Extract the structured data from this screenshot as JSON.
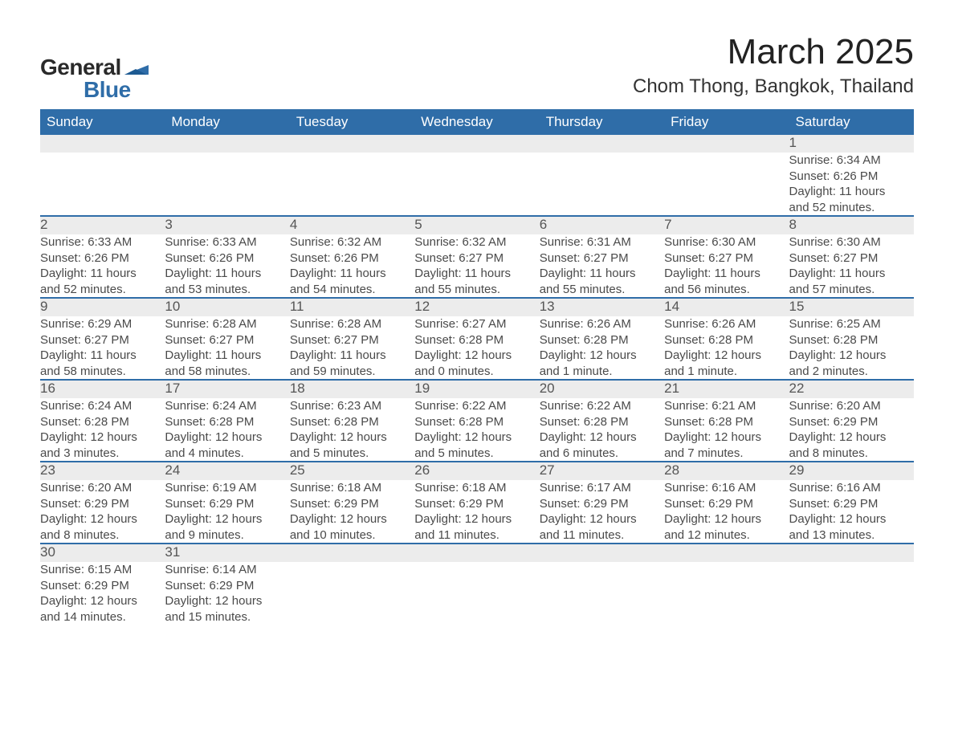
{
  "logo": {
    "text1": "General",
    "text2": "Blue",
    "color_dark": "#2a2a2a",
    "color_blue": "#2f6da8"
  },
  "title": "March 2025",
  "location": "Chom Thong, Bangkok, Thailand",
  "header_bg": "#2f6da8",
  "header_fg": "#ffffff",
  "daynum_bg": "#ececec",
  "border_color": "#2f6da8",
  "text_color": "#4a4a4a",
  "weekdays": [
    "Sunday",
    "Monday",
    "Tuesday",
    "Wednesday",
    "Thursday",
    "Friday",
    "Saturday"
  ],
  "weeks": [
    [
      {
        "num": "",
        "lines": [
          "",
          "",
          "",
          ""
        ]
      },
      {
        "num": "",
        "lines": [
          "",
          "",
          "",
          ""
        ]
      },
      {
        "num": "",
        "lines": [
          "",
          "",
          "",
          ""
        ]
      },
      {
        "num": "",
        "lines": [
          "",
          "",
          "",
          ""
        ]
      },
      {
        "num": "",
        "lines": [
          "",
          "",
          "",
          ""
        ]
      },
      {
        "num": "",
        "lines": [
          "",
          "",
          "",
          ""
        ]
      },
      {
        "num": "1",
        "lines": [
          "Sunrise: 6:34 AM",
          "Sunset: 6:26 PM",
          "Daylight: 11 hours",
          "and 52 minutes."
        ]
      }
    ],
    [
      {
        "num": "2",
        "lines": [
          "Sunrise: 6:33 AM",
          "Sunset: 6:26 PM",
          "Daylight: 11 hours",
          "and 52 minutes."
        ]
      },
      {
        "num": "3",
        "lines": [
          "Sunrise: 6:33 AM",
          "Sunset: 6:26 PM",
          "Daylight: 11 hours",
          "and 53 minutes."
        ]
      },
      {
        "num": "4",
        "lines": [
          "Sunrise: 6:32 AM",
          "Sunset: 6:26 PM",
          "Daylight: 11 hours",
          "and 54 minutes."
        ]
      },
      {
        "num": "5",
        "lines": [
          "Sunrise: 6:32 AM",
          "Sunset: 6:27 PM",
          "Daylight: 11 hours",
          "and 55 minutes."
        ]
      },
      {
        "num": "6",
        "lines": [
          "Sunrise: 6:31 AM",
          "Sunset: 6:27 PM",
          "Daylight: 11 hours",
          "and 55 minutes."
        ]
      },
      {
        "num": "7",
        "lines": [
          "Sunrise: 6:30 AM",
          "Sunset: 6:27 PM",
          "Daylight: 11 hours",
          "and 56 minutes."
        ]
      },
      {
        "num": "8",
        "lines": [
          "Sunrise: 6:30 AM",
          "Sunset: 6:27 PM",
          "Daylight: 11 hours",
          "and 57 minutes."
        ]
      }
    ],
    [
      {
        "num": "9",
        "lines": [
          "Sunrise: 6:29 AM",
          "Sunset: 6:27 PM",
          "Daylight: 11 hours",
          "and 58 minutes."
        ]
      },
      {
        "num": "10",
        "lines": [
          "Sunrise: 6:28 AM",
          "Sunset: 6:27 PM",
          "Daylight: 11 hours",
          "and 58 minutes."
        ]
      },
      {
        "num": "11",
        "lines": [
          "Sunrise: 6:28 AM",
          "Sunset: 6:27 PM",
          "Daylight: 11 hours",
          "and 59 minutes."
        ]
      },
      {
        "num": "12",
        "lines": [
          "Sunrise: 6:27 AM",
          "Sunset: 6:28 PM",
          "Daylight: 12 hours",
          "and 0 minutes."
        ]
      },
      {
        "num": "13",
        "lines": [
          "Sunrise: 6:26 AM",
          "Sunset: 6:28 PM",
          "Daylight: 12 hours",
          "and 1 minute."
        ]
      },
      {
        "num": "14",
        "lines": [
          "Sunrise: 6:26 AM",
          "Sunset: 6:28 PM",
          "Daylight: 12 hours",
          "and 1 minute."
        ]
      },
      {
        "num": "15",
        "lines": [
          "Sunrise: 6:25 AM",
          "Sunset: 6:28 PM",
          "Daylight: 12 hours",
          "and 2 minutes."
        ]
      }
    ],
    [
      {
        "num": "16",
        "lines": [
          "Sunrise: 6:24 AM",
          "Sunset: 6:28 PM",
          "Daylight: 12 hours",
          "and 3 minutes."
        ]
      },
      {
        "num": "17",
        "lines": [
          "Sunrise: 6:24 AM",
          "Sunset: 6:28 PM",
          "Daylight: 12 hours",
          "and 4 minutes."
        ]
      },
      {
        "num": "18",
        "lines": [
          "Sunrise: 6:23 AM",
          "Sunset: 6:28 PM",
          "Daylight: 12 hours",
          "and 5 minutes."
        ]
      },
      {
        "num": "19",
        "lines": [
          "Sunrise: 6:22 AM",
          "Sunset: 6:28 PM",
          "Daylight: 12 hours",
          "and 5 minutes."
        ]
      },
      {
        "num": "20",
        "lines": [
          "Sunrise: 6:22 AM",
          "Sunset: 6:28 PM",
          "Daylight: 12 hours",
          "and 6 minutes."
        ]
      },
      {
        "num": "21",
        "lines": [
          "Sunrise: 6:21 AM",
          "Sunset: 6:28 PM",
          "Daylight: 12 hours",
          "and 7 minutes."
        ]
      },
      {
        "num": "22",
        "lines": [
          "Sunrise: 6:20 AM",
          "Sunset: 6:29 PM",
          "Daylight: 12 hours",
          "and 8 minutes."
        ]
      }
    ],
    [
      {
        "num": "23",
        "lines": [
          "Sunrise: 6:20 AM",
          "Sunset: 6:29 PM",
          "Daylight: 12 hours",
          "and 8 minutes."
        ]
      },
      {
        "num": "24",
        "lines": [
          "Sunrise: 6:19 AM",
          "Sunset: 6:29 PM",
          "Daylight: 12 hours",
          "and 9 minutes."
        ]
      },
      {
        "num": "25",
        "lines": [
          "Sunrise: 6:18 AM",
          "Sunset: 6:29 PM",
          "Daylight: 12 hours",
          "and 10 minutes."
        ]
      },
      {
        "num": "26",
        "lines": [
          "Sunrise: 6:18 AM",
          "Sunset: 6:29 PM",
          "Daylight: 12 hours",
          "and 11 minutes."
        ]
      },
      {
        "num": "27",
        "lines": [
          "Sunrise: 6:17 AM",
          "Sunset: 6:29 PM",
          "Daylight: 12 hours",
          "and 11 minutes."
        ]
      },
      {
        "num": "28",
        "lines": [
          "Sunrise: 6:16 AM",
          "Sunset: 6:29 PM",
          "Daylight: 12 hours",
          "and 12 minutes."
        ]
      },
      {
        "num": "29",
        "lines": [
          "Sunrise: 6:16 AM",
          "Sunset: 6:29 PM",
          "Daylight: 12 hours",
          "and 13 minutes."
        ]
      }
    ],
    [
      {
        "num": "30",
        "lines": [
          "Sunrise: 6:15 AM",
          "Sunset: 6:29 PM",
          "Daylight: 12 hours",
          "and 14 minutes."
        ]
      },
      {
        "num": "31",
        "lines": [
          "Sunrise: 6:14 AM",
          "Sunset: 6:29 PM",
          "Daylight: 12 hours",
          "and 15 minutes."
        ]
      },
      {
        "num": "",
        "lines": [
          "",
          "",
          "",
          ""
        ]
      },
      {
        "num": "",
        "lines": [
          "",
          "",
          "",
          ""
        ]
      },
      {
        "num": "",
        "lines": [
          "",
          "",
          "",
          ""
        ]
      },
      {
        "num": "",
        "lines": [
          "",
          "",
          "",
          ""
        ]
      },
      {
        "num": "",
        "lines": [
          "",
          "",
          "",
          ""
        ]
      }
    ]
  ]
}
